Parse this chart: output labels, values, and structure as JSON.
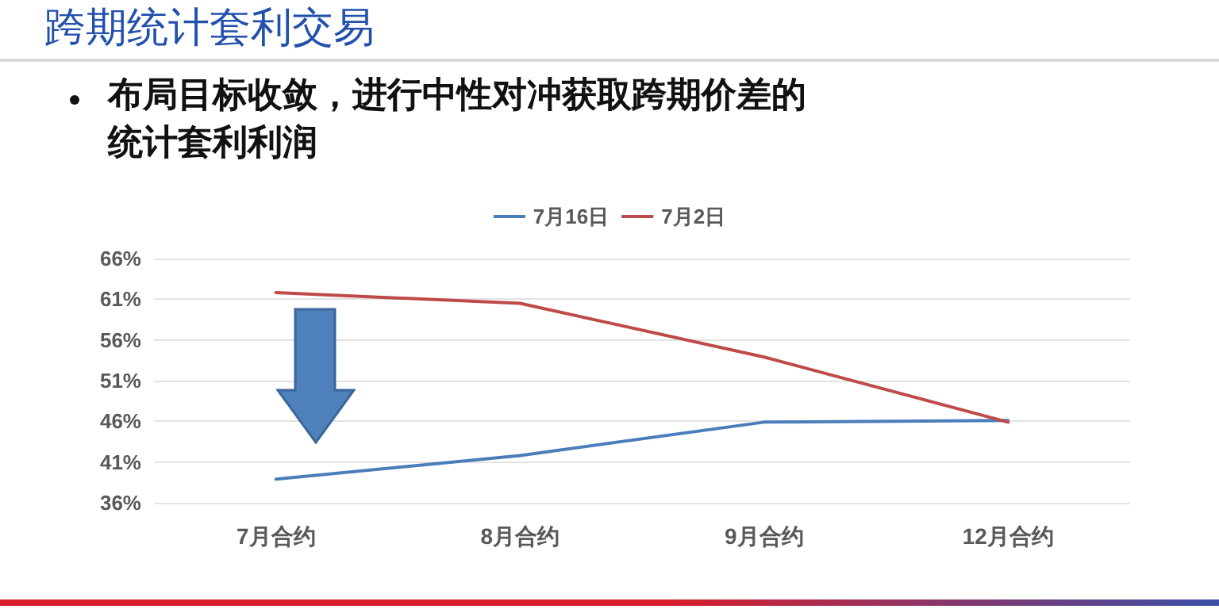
{
  "chart_data": {
    "type": "line",
    "title": "跨期统计套利交易",
    "subtitle": "布局目标收敛，进行中性对冲获取跨期价差的统计套利利润",
    "categories": [
      "7月合约",
      "8月合约",
      "9月合约",
      "12月合约"
    ],
    "series": [
      {
        "name": "7月16日",
        "color": "#4a7ebb",
        "values": [
          38.9,
          41.8,
          45.9,
          46.1
        ]
      },
      {
        "name": "7月2日",
        "color": "#be4b48",
        "values": [
          61.8,
          60.5,
          53.9,
          45.9
        ]
      }
    ],
    "ylim": [
      36,
      66
    ],
    "yticks": [
      {
        "value": 36,
        "label": "36%"
      },
      {
        "value": 41,
        "label": "41%"
      },
      {
        "value": 46,
        "label": "46%"
      },
      {
        "value": 51,
        "label": "51%"
      },
      {
        "value": 56,
        "label": "56%"
      },
      {
        "value": 61,
        "label": "61%"
      },
      {
        "value": 66,
        "label": "66%"
      }
    ],
    "grid": "y",
    "legend": "top",
    "marker": "none",
    "line_style": "solid"
  }
}
